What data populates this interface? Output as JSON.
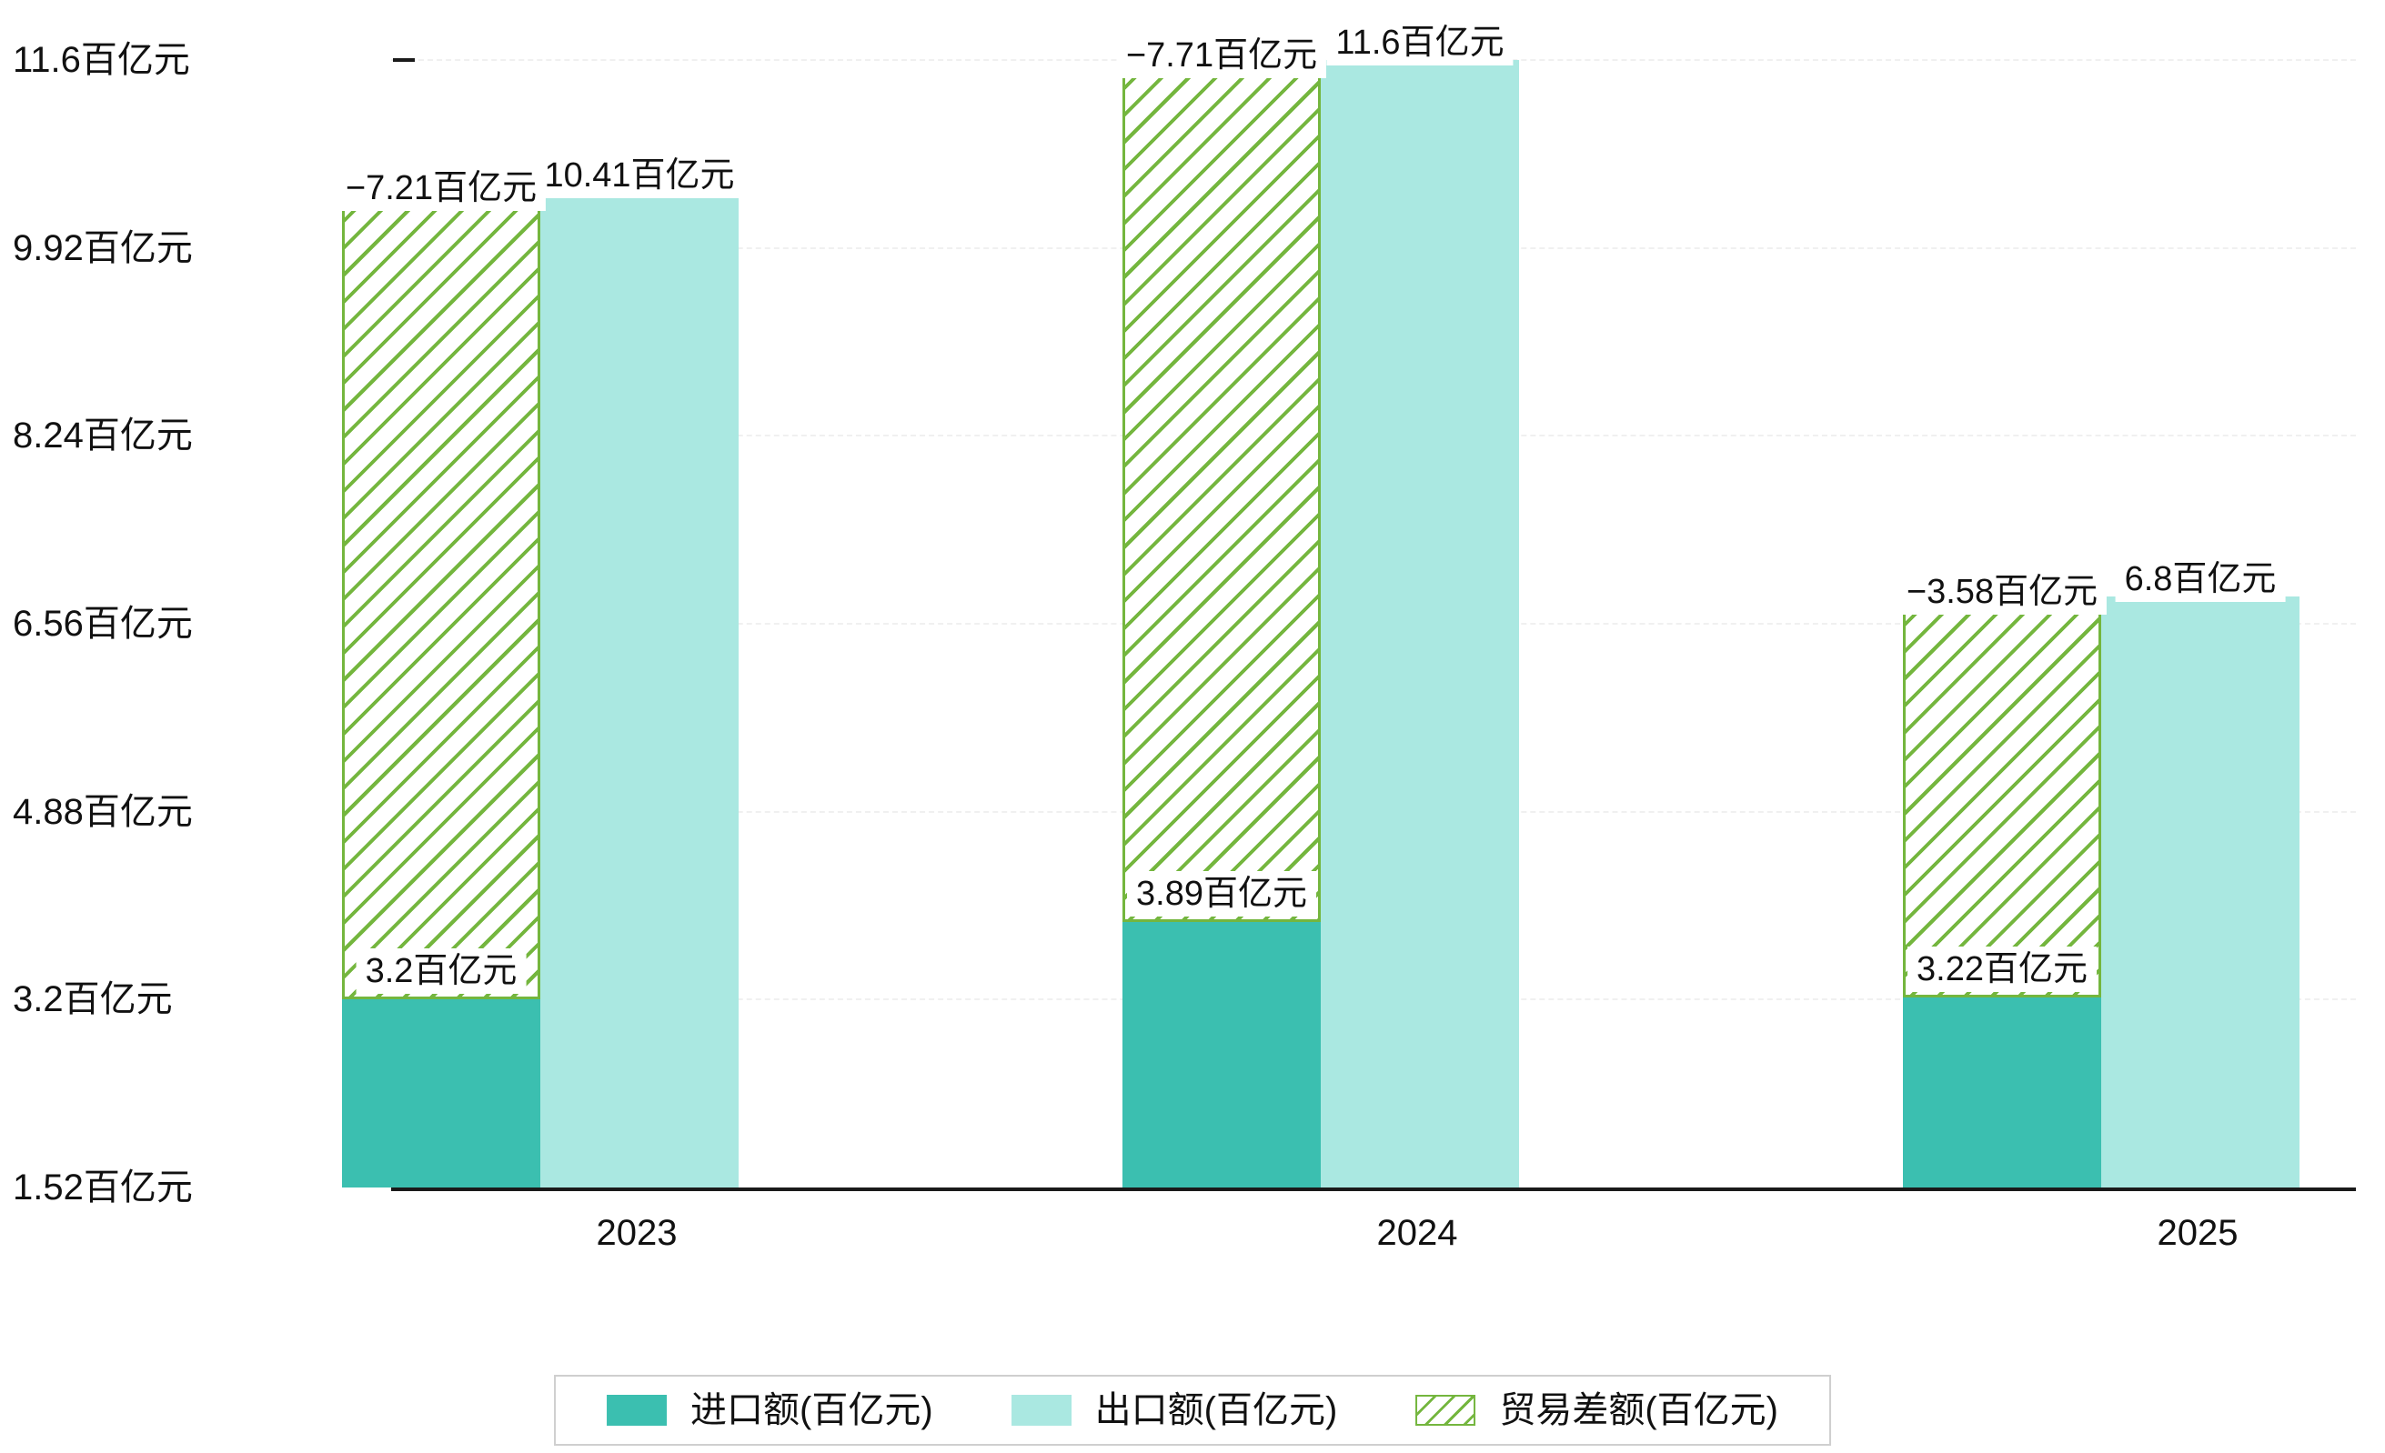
{
  "chart_data": {
    "type": "bar",
    "title": "",
    "categories": [
      "2023",
      "2024",
      "2025"
    ],
    "series": [
      {
        "name": "进口额(百亿元)",
        "role": "import",
        "color": "#3bbfb0",
        "values": [
          3.2,
          3.89,
          3.22
        ],
        "labels": [
          "3.2百亿元",
          "3.89百亿元",
          "3.22百亿元"
        ]
      },
      {
        "name": "出口额(百亿元)",
        "role": "export",
        "color": "#aae8e1",
        "values": [
          10.41,
          11.6,
          6.8
        ],
        "labels": [
          "10.41百亿元",
          "11.6百亿元",
          "6.8百亿元"
        ]
      },
      {
        "name": "贸易差额(百亿元)",
        "role": "trade-balance",
        "color": "#74b63e",
        "pattern": "diagonal-hatch",
        "values": [
          -7.21,
          -7.71,
          -3.58
        ],
        "labels": [
          "−7.21百亿元",
          "−7.71百亿元",
          "−3.58百亿元"
        ],
        "bar_span": "import-top-to-export-top"
      }
    ],
    "y_ticks": [
      1.52,
      3.2,
      4.88,
      6.56,
      8.24,
      9.92,
      11.6
    ],
    "y_tick_labels": [
      "1.52百亿元",
      "3.2百亿元",
      "4.88百亿元",
      "6.56百亿元",
      "8.24百亿元",
      "9.92百亿元",
      "11.6百亿元"
    ],
    "ylim": [
      1.52,
      11.6
    ],
    "unit": "百亿元",
    "grid": "horizontal-dashed-faint",
    "legend_position": "bottom"
  },
  "legend": {
    "items": [
      {
        "label": "进口额(百亿元)",
        "swatch": "solid-teal"
      },
      {
        "label": "出口额(百亿元)",
        "swatch": "solid-light-teal"
      },
      {
        "label": "贸易差额(百亿元)",
        "swatch": "hatched-green"
      }
    ]
  },
  "colors": {
    "import": "#3bbfb0",
    "export": "#aae8e1",
    "trade_hatch": "#74b63e",
    "axis": "#1a1a1a",
    "label_text": "#111111",
    "legend_border": "#cfcfcf",
    "background": "#ffffff"
  }
}
